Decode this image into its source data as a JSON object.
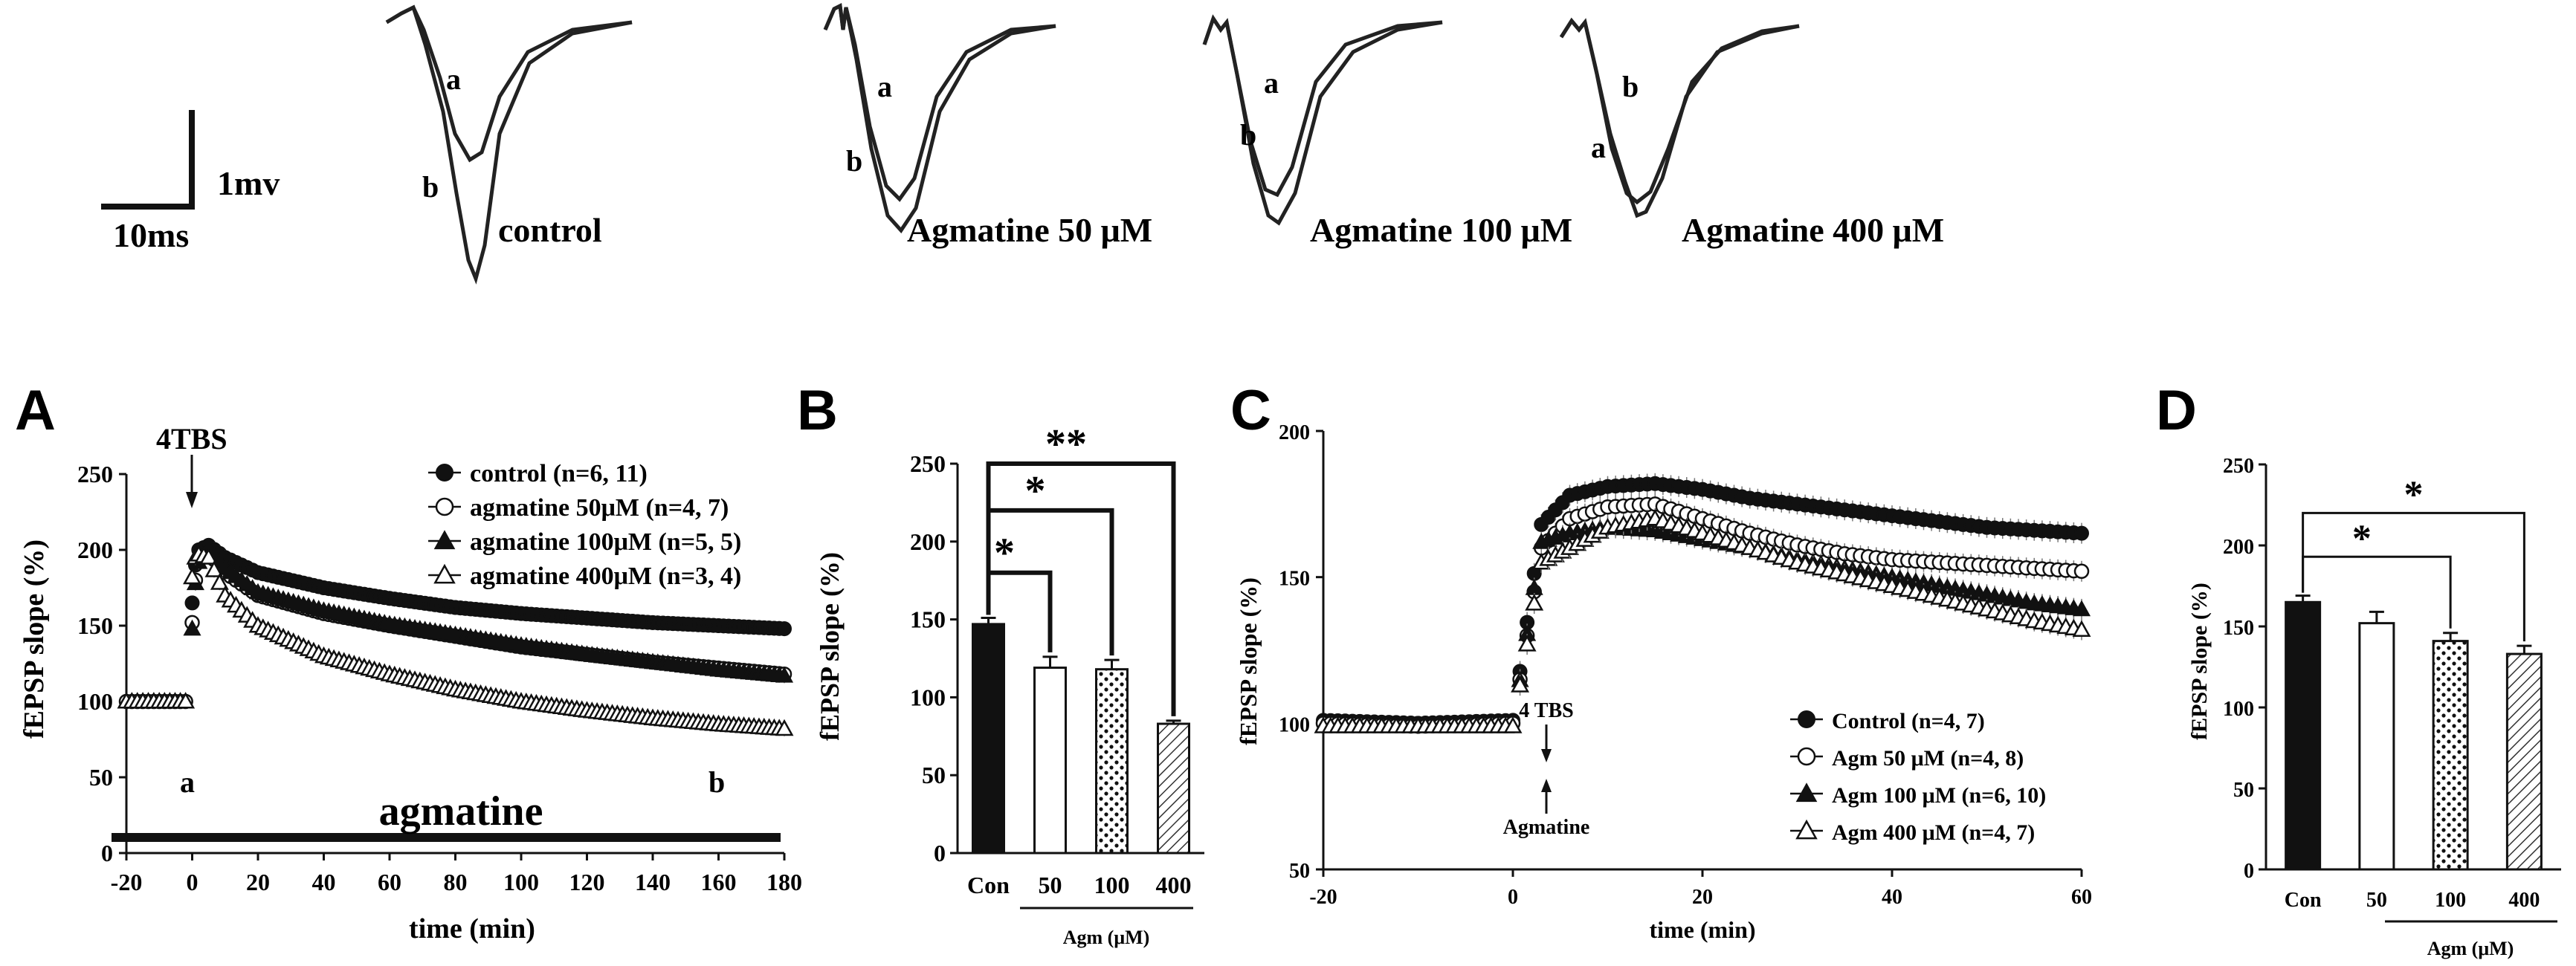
{
  "traces_row": {
    "scale_bar": {
      "vertical_label": "1mv",
      "horizontal_label": "10ms"
    },
    "panels": [
      {
        "label": "control",
        "a": "a",
        "b": "b"
      },
      {
        "label": "Agmatine 50 μM",
        "a": "a",
        "b": "b"
      },
      {
        "label": "Agmatine 100 μM",
        "a": "a",
        "b": "b"
      },
      {
        "label": "Agmatine 400 μM",
        "a": "a",
        "b": "b"
      }
    ]
  },
  "chart_data": [
    {
      "panel": "A",
      "type": "scatter",
      "ylabel": "fEPSP slope (%)",
      "xlabel": "time (min)",
      "xlim": [
        -20,
        180
      ],
      "ylim": [
        0,
        250
      ],
      "xticks": [
        -20,
        0,
        20,
        40,
        60,
        80,
        100,
        120,
        140,
        160,
        180
      ],
      "yticks": [
        0,
        50,
        100,
        150,
        200,
        250
      ],
      "annotations": {
        "tbs": "4TBS",
        "a": "a",
        "b": "b",
        "drug_bar": "agmatine"
      },
      "legend": "top-right",
      "series": [
        {
          "name": "control (n=6, 11)",
          "marker": "filled-circle",
          "x": [
            -20,
            -10,
            -2,
            0,
            1,
            2,
            5,
            10,
            20,
            40,
            60,
            80,
            100,
            120,
            140,
            160,
            180
          ],
          "y": [
            100,
            100,
            100,
            165,
            190,
            200,
            203,
            195,
            185,
            175,
            168,
            162,
            158,
            155,
            152,
            150,
            148
          ]
        },
        {
          "name": "agmatine 50μM (n=4, 7)",
          "marker": "open-circle",
          "x": [
            -20,
            -10,
            -2,
            0,
            1,
            2,
            5,
            10,
            20,
            40,
            60,
            80,
            100,
            120,
            140,
            160,
            180
          ],
          "y": [
            100,
            100,
            100,
            152,
            180,
            193,
            198,
            185,
            170,
            158,
            150,
            143,
            136,
            131,
            126,
            122,
            118
          ]
        },
        {
          "name": "agmatine 100μM (n=5, 5)",
          "marker": "filled-triangle",
          "x": [
            -20,
            -10,
            -2,
            0,
            1,
            2,
            5,
            10,
            20,
            40,
            60,
            80,
            100,
            120,
            140,
            160,
            180
          ],
          "y": [
            100,
            100,
            100,
            148,
            178,
            192,
            200,
            188,
            172,
            160,
            151,
            144,
            137,
            131,
            126,
            121,
            117
          ]
        },
        {
          "name": "agmatine 400μM (n=3, 4)",
          "marker": "open-triangle",
          "x": [
            -20,
            -10,
            -2,
            0,
            1,
            2,
            5,
            10,
            20,
            40,
            60,
            80,
            100,
            120,
            140,
            160,
            180
          ],
          "y": [
            100,
            100,
            100,
            182,
            195,
            197,
            195,
            170,
            150,
            130,
            118,
            108,
            100,
            94,
            89,
            85,
            82
          ]
        }
      ]
    },
    {
      "panel": "B",
      "type": "bar",
      "ylabel": "fEPSP slope (%)",
      "xgroup_label": "Agm (μM)",
      "ylim": [
        0,
        250
      ],
      "yticks": [
        0,
        50,
        100,
        150,
        200,
        250
      ],
      "categories": [
        "Con",
        "50",
        "100",
        "400"
      ],
      "values": [
        147,
        119,
        118,
        83
      ],
      "errors": [
        4,
        7,
        6,
        2
      ],
      "fills": [
        "black",
        "white",
        "dots",
        "hatch"
      ],
      "significance": [
        {
          "from": 0,
          "to": 1,
          "label": "*"
        },
        {
          "from": 0,
          "to": 2,
          "label": "*"
        },
        {
          "from": 0,
          "to": 3,
          "label": "**"
        }
      ]
    },
    {
      "panel": "C",
      "type": "scatter",
      "ylabel": "fEPSP slope (%)",
      "xlabel": "time (min)",
      "xlim": [
        -20,
        60
      ],
      "ylim": [
        50,
        200
      ],
      "xticks": [
        -20,
        0,
        20,
        40,
        60
      ],
      "yticks": [
        50,
        100,
        150,
        200
      ],
      "annotations": {
        "tbs": "4 TBS",
        "drug": "Agmatine"
      },
      "legend": "bottom-right",
      "series": [
        {
          "name": "Control (n=4, 7)",
          "marker": "filled-circle",
          "x": [
            -20,
            -10,
            0,
            3,
            6,
            10,
            15,
            20,
            25,
            30,
            35,
            40,
            45,
            50,
            55,
            60
          ],
          "y": [
            101,
            100,
            101,
            168,
            178,
            181,
            182,
            180,
            177,
            175,
            173,
            171,
            169,
            167,
            166,
            165
          ]
        },
        {
          "name": "Agm 50 μM (n=4, 8)",
          "marker": "open-circle",
          "x": [
            -20,
            -10,
            0,
            3,
            6,
            10,
            15,
            20,
            25,
            30,
            35,
            40,
            45,
            50,
            55,
            60
          ],
          "y": [
            100,
            99,
            100,
            160,
            170,
            174,
            175,
            170,
            165,
            161,
            158,
            156,
            155,
            154,
            153,
            152
          ]
        },
        {
          "name": "Agm 100 μM (n=6, 10)",
          "marker": "filled-triangle",
          "x": [
            -20,
            -10,
            0,
            3,
            6,
            10,
            15,
            20,
            25,
            30,
            35,
            40,
            45,
            50,
            55,
            60
          ],
          "y": [
            99,
            99,
            99,
            162,
            165,
            167,
            166,
            163,
            160,
            156,
            153,
            150,
            147,
            144,
            141,
            139
          ]
        },
        {
          "name": "Agm 400 μM (n=4, 7)",
          "marker": "open-triangle",
          "x": [
            -20,
            -10,
            0,
            3,
            6,
            10,
            15,
            20,
            25,
            30,
            35,
            40,
            45,
            50,
            55,
            60
          ],
          "y": [
            99,
            99,
            99,
            155,
            160,
            167,
            170,
            165,
            160,
            155,
            151,
            147,
            143,
            139,
            135,
            132
          ]
        }
      ]
    },
    {
      "panel": "D",
      "type": "bar",
      "ylabel": "fEPSP slope (%)",
      "xgroup_label": "Agm (μM)",
      "ylim": [
        0,
        250
      ],
      "yticks": [
        0,
        50,
        100,
        150,
        200,
        250
      ],
      "categories": [
        "Con",
        "50",
        "100",
        "400"
      ],
      "values": [
        165,
        152,
        141,
        133
      ],
      "errors": [
        4,
        7,
        5,
        5
      ],
      "fills": [
        "black",
        "white",
        "dots",
        "hatch"
      ],
      "significance": [
        {
          "from": 0,
          "to": 2,
          "label": "*"
        },
        {
          "from": 0,
          "to": 3,
          "label": "*"
        }
      ]
    }
  ]
}
